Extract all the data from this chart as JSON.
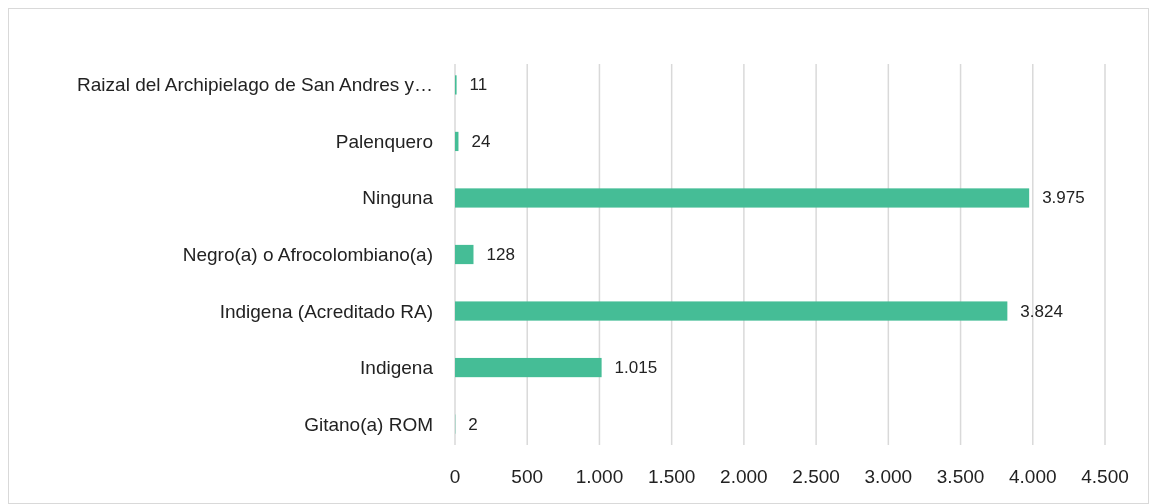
{
  "chart_data": {
    "type": "bar",
    "orientation": "horizontal",
    "categories": [
      "Raizal del Archipielago de San Andres y…",
      "Palenquero",
      "Ninguna",
      "Negro(a) o Afrocolombiano(a)",
      "Indigena (Acreditado RA)",
      "Indigena",
      "Gitano(a) ROM"
    ],
    "values": [
      11,
      24,
      3975,
      128,
      3824,
      1015,
      2
    ],
    "value_labels": [
      "11",
      "24",
      "3.975",
      "128",
      "3.824",
      "1.015",
      "2"
    ],
    "color": "#45bd96",
    "xlim": [
      0,
      4500
    ],
    "xticks": [
      0,
      500,
      {
        "value": 1000,
        "label": "1.000"
      },
      {
        "value": 1500,
        "label": "1.500"
      },
      {
        "value": 2000,
        "label": "2.000"
      },
      {
        "value": 2500,
        "label": "2.500"
      },
      {
        "value": 3000,
        "label": "3.000"
      },
      {
        "value": 3500,
        "label": "3.500"
      },
      {
        "value": 4000,
        "label": "4.000"
      },
      {
        "value": 4500,
        "label": "4.500"
      }
    ],
    "grid": "x"
  }
}
